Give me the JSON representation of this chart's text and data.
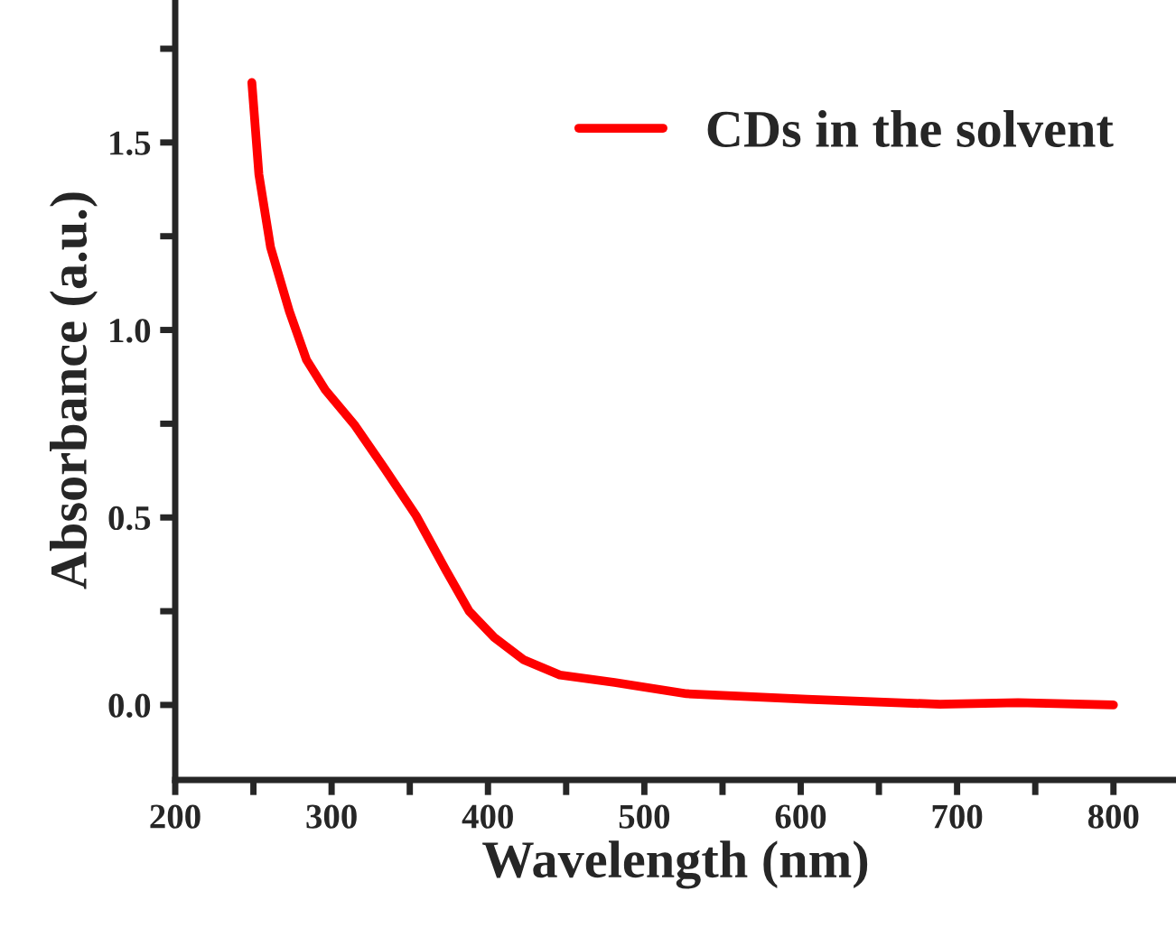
{
  "chart_data": {
    "type": "line",
    "xlabel": "Wavelength (nm)",
    "ylabel": "Absorbance (a.u.)",
    "x": [
      249,
      253.5,
      261,
      273,
      284,
      296,
      315,
      334,
      354,
      373,
      388,
      404,
      423,
      446,
      481,
      527,
      604,
      689,
      739,
      800
    ],
    "series": [
      {
        "name": "CDs in the solvent",
        "color": "#ff0000",
        "values": [
          1.66,
          1.415,
          1.22,
          1.05,
          0.92,
          0.84,
          0.745,
          0.63,
          0.505,
          0.36,
          0.25,
          0.18,
          0.12,
          0.08,
          0.06,
          0.03,
          0.015,
          0.002,
          0.006,
          0.0
        ]
      }
    ],
    "xlim": [
      200,
      840
    ],
    "ylim": [
      -0.2,
      1.88
    ],
    "xticks": [
      200,
      {
        "value": 250,
        "label": null
      },
      300,
      {
        "value": 350,
        "label": null
      },
      400,
      {
        "value": 450,
        "label": null
      },
      500,
      {
        "value": 550,
        "label": null
      },
      600,
      {
        "value": 650,
        "label": null
      },
      700,
      {
        "value": 750,
        "label": null
      },
      800
    ],
    "yticks": [
      {
        "value": 0,
        "label": "0.0"
      },
      {
        "value": 0.25,
        "label": null
      },
      {
        "value": 0.5,
        "label": "0.5"
      },
      {
        "value": 0.75,
        "label": null
      },
      {
        "value": 1.0,
        "label": "1.0"
      },
      {
        "value": 1.25,
        "label": null
      },
      {
        "value": 1.5,
        "label": "1.5"
      },
      {
        "value": 1.75,
        "label": null
      }
    ],
    "legend": "top right",
    "grid": false,
    "line_style": "solid",
    "marker": "none"
  }
}
